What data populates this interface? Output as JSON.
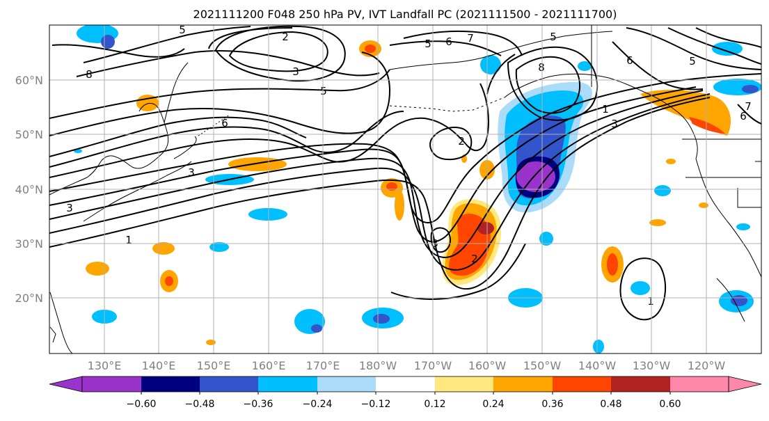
{
  "title": "2021111200 F048 250 hPa PV, IVT Landfall PC (2021111500 - 2021111700)",
  "lat_labels": [
    "20°N",
    "30°N",
    "40°N",
    "50°N",
    "60°N"
  ],
  "lon_labels": [
    "130°E",
    "140°E",
    "150°E",
    "160°E",
    "170°E",
    "180°W",
    "170°W",
    "160°W",
    "150°W",
    "140°W",
    "130°W",
    "120°W"
  ],
  "contour_labels": [
    "1",
    "1",
    "1",
    "2",
    "2",
    "2",
    "3",
    "3",
    "3",
    "3",
    "3",
    "5",
    "5",
    "5",
    "5",
    "5",
    "6",
    "6",
    "6",
    "6",
    "7",
    "7",
    "8",
    "8"
  ],
  "colorbar": {
    "colors": [
      "#9933cc",
      "#000080",
      "#3355cc",
      "#00bfff",
      "#aadcfa",
      "#ffffff",
      "#ffe97f",
      "#ffa500",
      "#ff4500",
      "#b22222",
      "#ff88aa"
    ],
    "tick_labels": [
      "−0.60",
      "−0.48",
      "−0.36",
      "−0.24",
      "−0.12",
      "0.12",
      "0.24",
      "0.36",
      "0.48",
      "0.60"
    ]
  },
  "colors": {
    "grid": "#b0b0b0",
    "axis_label": "#808080",
    "contour": "#000000",
    "coast": "#000000"
  }
}
